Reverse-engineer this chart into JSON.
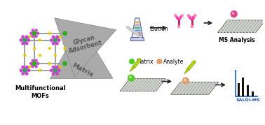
{
  "bg_color": "#ffffff",
  "mof_label": "Multifunctional\nMOFs",
  "matrix_label": "Matrix",
  "glycan_label": "Glycan\nAdsorbent",
  "matrix_dot_label": "Matrix",
  "analyte_label": "Analyte",
  "saldi_label": "SALDI-MS",
  "elution_label": "Elution",
  "ms_label": "MS Analysis",
  "plate_color": "#aab0aa",
  "plate_dots": "#d0d4cc",
  "arrow_color": "#888888",
  "green_dot": "#55cc22",
  "peach_dot": "#e0a070",
  "pink_dot": "#dd4488",
  "antibody_color": "#cc2266",
  "bar_color": "#222222",
  "axis_color": "#4477cc",
  "mof_frame": "#999999",
  "mof_green": "#33aa22",
  "mof_yellow": "#ddcc00",
  "mof_purple": "#cc44cc",
  "mof_blue": "#4488cc",
  "pipette_color": "#aadd11",
  "pipette_dark": "#889900",
  "tube_body": "#e8eeff",
  "tube_cap": "#ccccee"
}
